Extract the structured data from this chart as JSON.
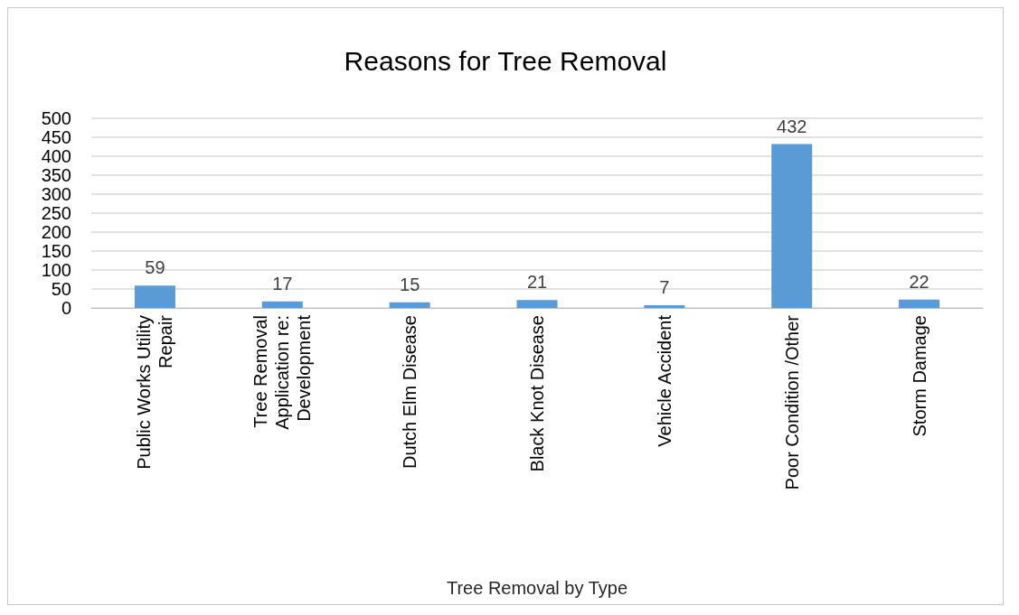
{
  "chart_data": {
    "type": "bar",
    "title": "Reasons for Tree Removal",
    "xlabel": "Tree Removal by Type",
    "categories": [
      "Public Works Utility\nRepair",
      "Tree Removal\nApplication re:\nDevelopment",
      "Dutch Elm Disease",
      "Black Knot Disease",
      "Vehicle Accident",
      "Poor Condition /Other",
      "Storm Damage"
    ],
    "values": [
      59,
      17,
      15,
      21,
      7,
      432,
      22
    ],
    "color": "#5b9bd5",
    "ylim": [
      0,
      500
    ],
    "yticks": [
      0,
      50,
      100,
      150,
      200,
      250,
      300,
      350,
      400,
      450,
      500
    ],
    "grid": "y",
    "data_labels": true
  }
}
